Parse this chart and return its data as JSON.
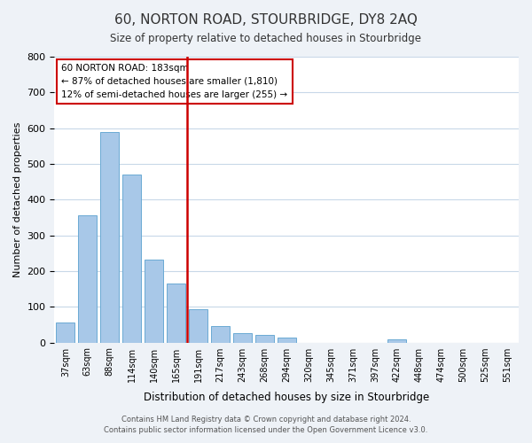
{
  "title": "60, NORTON ROAD, STOURBRIDGE, DY8 2AQ",
  "subtitle": "Size of property relative to detached houses in Stourbridge",
  "xlabel": "Distribution of detached houses by size in Stourbridge",
  "ylabel": "Number of detached properties",
  "bar_labels": [
    "37sqm",
    "63sqm",
    "88sqm",
    "114sqm",
    "140sqm",
    "165sqm",
    "191sqm",
    "217sqm",
    "243sqm",
    "268sqm",
    "294sqm",
    "320sqm",
    "345sqm",
    "371sqm",
    "397sqm",
    "422sqm",
    "448sqm",
    "474sqm",
    "500sqm",
    "525sqm",
    "551sqm"
  ],
  "bar_values": [
    57,
    357,
    588,
    469,
    233,
    165,
    94,
    47,
    25,
    20,
    13,
    0,
    0,
    0,
    0,
    8,
    0,
    0,
    0,
    0,
    0
  ],
  "bar_color": "#a8c8e8",
  "bar_edge_color": "#6aaad4",
  "vline_pos": 5.5,
  "vline_color": "#cc0000",
  "ylim": [
    0,
    800
  ],
  "yticks": [
    0,
    100,
    200,
    300,
    400,
    500,
    600,
    700,
    800
  ],
  "annotation_title": "60 NORTON ROAD: 183sqm",
  "annotation_line1": "← 87% of detached houses are smaller (1,810)",
  "annotation_line2": "12% of semi-detached houses are larger (255) →",
  "annotation_box_color": "#ffffff",
  "annotation_box_edge": "#cc0000",
  "footer1": "Contains HM Land Registry data © Crown copyright and database right 2024.",
  "footer2": "Contains public sector information licensed under the Open Government Licence v3.0.",
  "bg_color": "#eef2f7",
  "plot_bg_color": "#ffffff",
  "grid_color": "#c8d8e8"
}
